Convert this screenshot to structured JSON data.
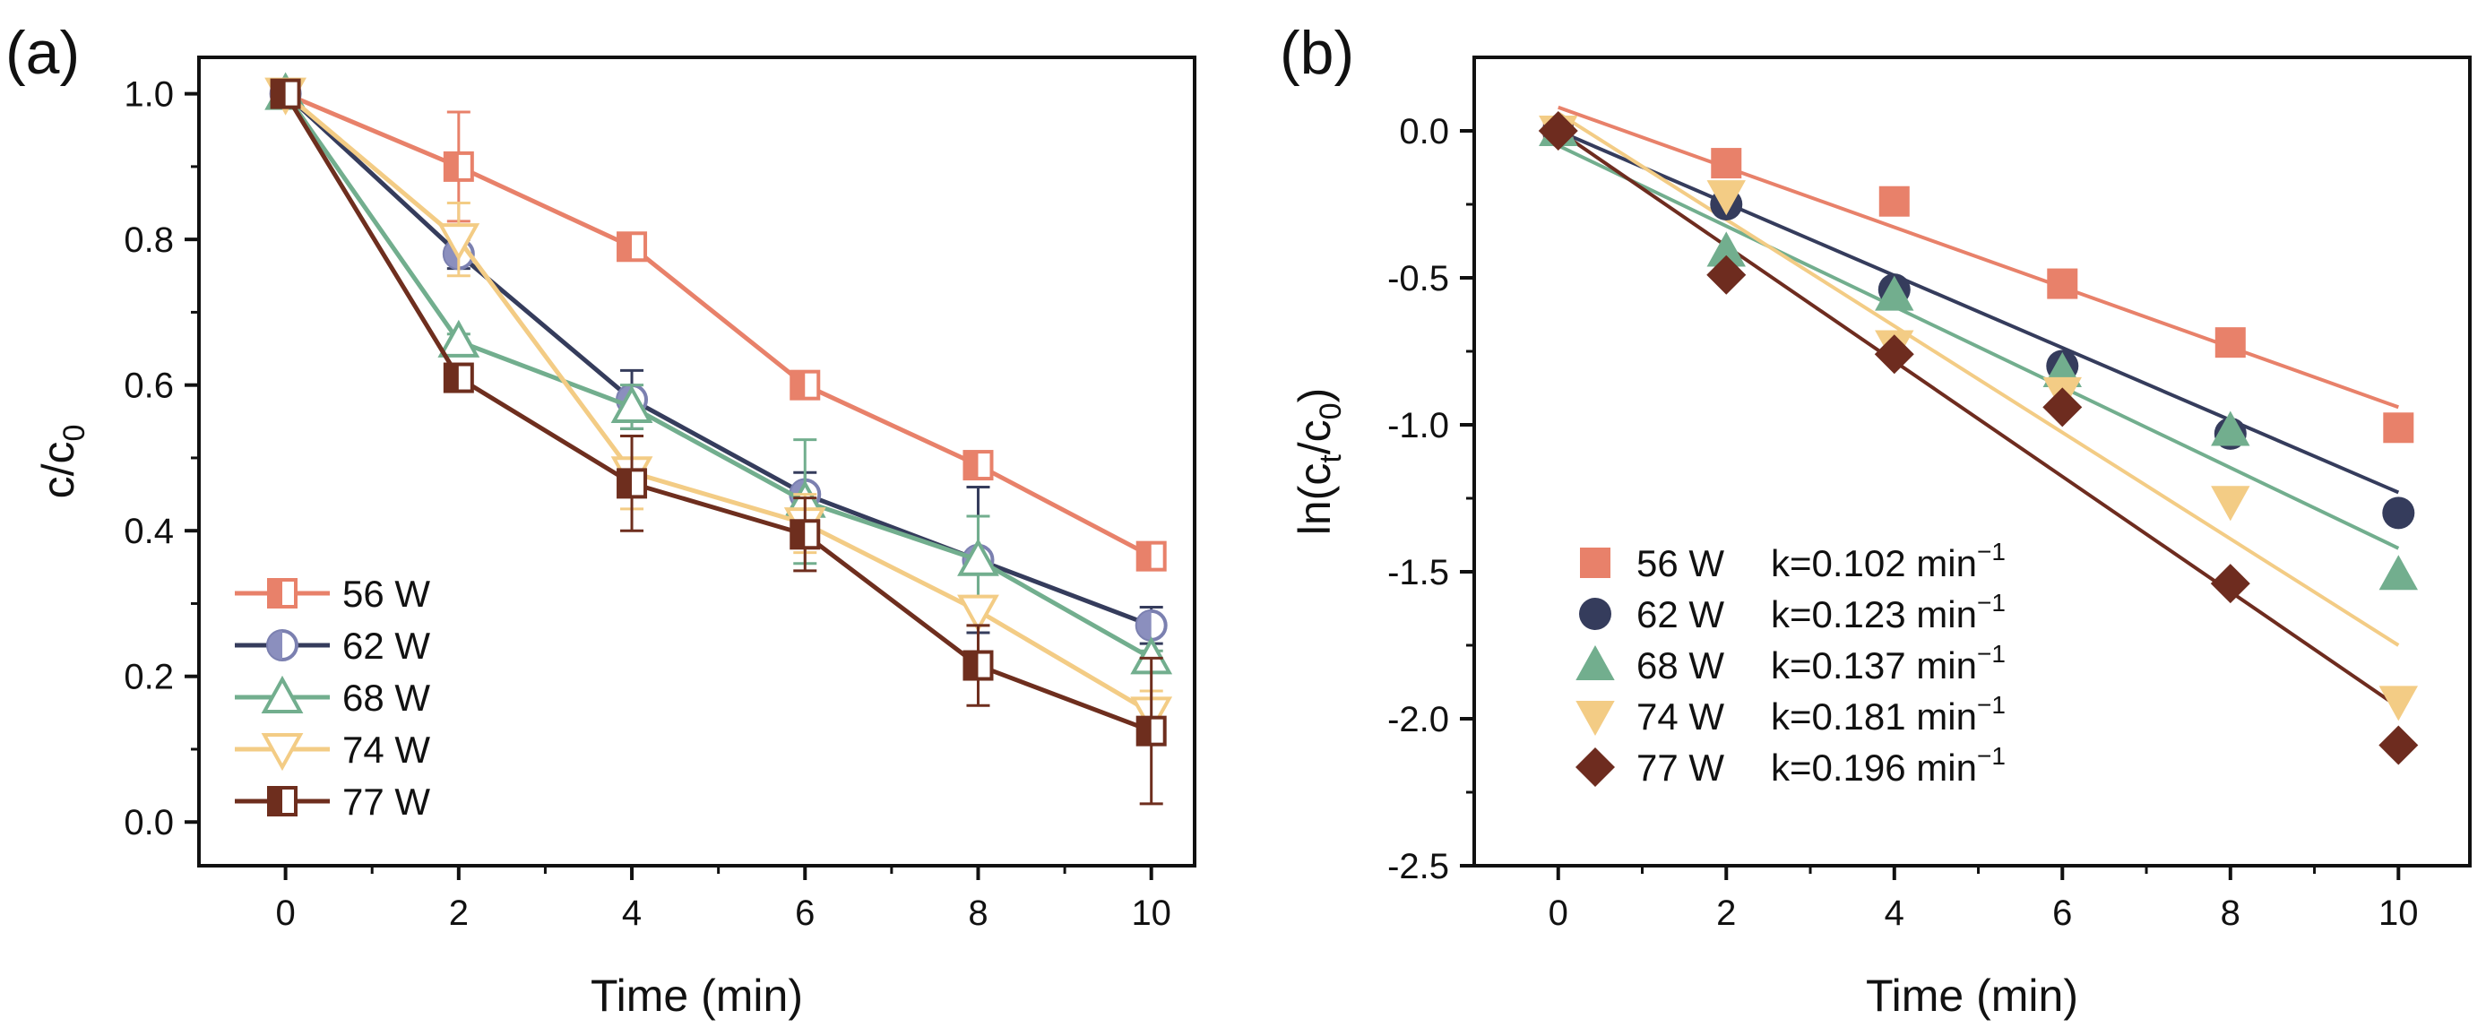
{
  "figure": {
    "panel_a_label": "(a)",
    "panel_b_label": "(b)"
  },
  "colors": {
    "56W": "#E8816A",
    "62W": "#353C5C",
    "62W_fill": "#8B8FBE",
    "68W": "#72AE8E",
    "74W": "#F3CC85",
    "77W": "#6E2E1E",
    "77W_b": "#6E2C1F"
  },
  "chart_data": [
    {
      "type": "line",
      "panel": "(a)",
      "title": "",
      "xlabel": "Time (min)",
      "ylabel": "c/c",
      "ylabel_sub": "0",
      "xlim": [
        -1,
        10.5
      ],
      "ylim": [
        -0.06,
        1.05
      ],
      "x_ticks": [
        0,
        2,
        4,
        6,
        8,
        10
      ],
      "x_tick_labels": [
        "0",
        "2",
        "4",
        "6",
        "8",
        "10"
      ],
      "y_ticks": [
        0.0,
        0.2,
        0.4,
        0.6,
        0.8,
        1.0
      ],
      "y_tick_labels": [
        "0.0",
        "0.2",
        "0.4",
        "0.6",
        "0.8",
        "1.0"
      ],
      "legend_position": "bottom-left",
      "x": [
        0,
        2,
        4,
        6,
        8,
        10
      ],
      "series": [
        {
          "name": "56 W",
          "marker": "square-half",
          "color_key": "56W",
          "values": [
            1.0,
            0.9,
            0.79,
            0.6,
            0.49,
            0.365
          ],
          "errors": [
            0,
            0.075,
            0.01,
            0.01,
            0.01,
            0.015
          ]
        },
        {
          "name": "62 W",
          "marker": "circle-half",
          "color_key": "62W",
          "values": [
            1.0,
            0.78,
            0.58,
            0.45,
            0.36,
            0.27
          ],
          "errors": [
            0,
            0.02,
            0.04,
            0.03,
            0.1,
            0.025
          ]
        },
        {
          "name": "68 W",
          "marker": "triangle-up",
          "color_key": "68W",
          "values": [
            1.0,
            0.66,
            0.57,
            0.44,
            0.36,
            0.225
          ],
          "errors": [
            0,
            0.01,
            0.03,
            0.085,
            0.06,
            0.01
          ]
        },
        {
          "name": "74 W",
          "marker": "triangle-down",
          "color_key": "74W",
          "values": [
            1.0,
            0.8,
            0.48,
            0.41,
            0.29,
            0.15
          ],
          "errors": [
            0,
            0.05,
            0.05,
            0.04,
            0.02,
            0.03
          ]
        },
        {
          "name": "77 W",
          "marker": "square-half",
          "color_key": "77W",
          "values": [
            1.0,
            0.61,
            0.465,
            0.395,
            0.215,
            0.125
          ],
          "errors": [
            0,
            0.015,
            0.065,
            0.05,
            0.055,
            0.1
          ]
        }
      ]
    },
    {
      "type": "scatter",
      "panel": "(b)",
      "title": "",
      "xlabel": "Time (min)",
      "ylabel": "ln(c",
      "ylabel_sub1": "t",
      "ylabel_mid": "/c",
      "ylabel_sub2": "0",
      "ylabel_end": ")",
      "xlim": [
        -1,
        10.85
      ],
      "ylim": [
        -2.5,
        0.25
      ],
      "x_ticks": [
        0,
        2,
        4,
        6,
        8,
        10
      ],
      "x_tick_labels": [
        "0",
        "2",
        "4",
        "6",
        "8",
        "10"
      ],
      "y_ticks": [
        0.0,
        -0.5,
        -1.0,
        -1.5,
        -2.0,
        -2.5
      ],
      "y_tick_labels": [
        "0.0",
        "-0.5",
        "-1.0",
        "-1.5",
        "-2.0",
        "-2.5"
      ],
      "legend_position": "bottom-left",
      "x": [
        0,
        2,
        4,
        6,
        8,
        10
      ],
      "series": [
        {
          "name": "56 W",
          "k_label": "k=0.102 min",
          "k_sup": "−1",
          "k": 0.102,
          "marker": "square",
          "color_key": "56W",
          "values": [
            0.0,
            -0.11,
            -0.24,
            -0.52,
            -0.72,
            -1.01
          ],
          "fit": [
            0.08,
            -0.94
          ]
        },
        {
          "name": "62 W",
          "k_label": "k=0.123 min",
          "k_sup": "−1",
          "k": 0.123,
          "marker": "circle",
          "color_key": "62W",
          "values": [
            0.0,
            -0.25,
            -0.54,
            -0.8,
            -1.03,
            -1.3
          ],
          "fit": [
            0.0,
            -1.23
          ]
        },
        {
          "name": "68 W",
          "k_label": "k=0.137 min",
          "k_sup": "−1",
          "k": 0.137,
          "marker": "triangle-up",
          "color_key": "68W",
          "values": [
            0.0,
            -0.41,
            -0.56,
            -0.82,
            -1.02,
            -1.51
          ],
          "fit": [
            -0.05,
            -1.42
          ]
        },
        {
          "name": "74 W",
          "k_label": "k=0.181 min",
          "k_sup": "−1",
          "k": 0.181,
          "marker": "triangle-down",
          "color_key": "74W",
          "values": [
            0.0,
            -0.22,
            -0.73,
            -0.89,
            -1.26,
            -1.94
          ],
          "fit": [
            0.06,
            -1.75
          ]
        },
        {
          "name": "77 W",
          "k_label": "k=0.196 min",
          "k_sup": "−1",
          "k": 0.196,
          "marker": "diamond",
          "color_key": "77W_b",
          "values": [
            0.0,
            -0.49,
            -0.76,
            -0.94,
            -1.54,
            -2.09
          ],
          "fit": [
            0.0,
            -1.96
          ]
        }
      ]
    }
  ]
}
